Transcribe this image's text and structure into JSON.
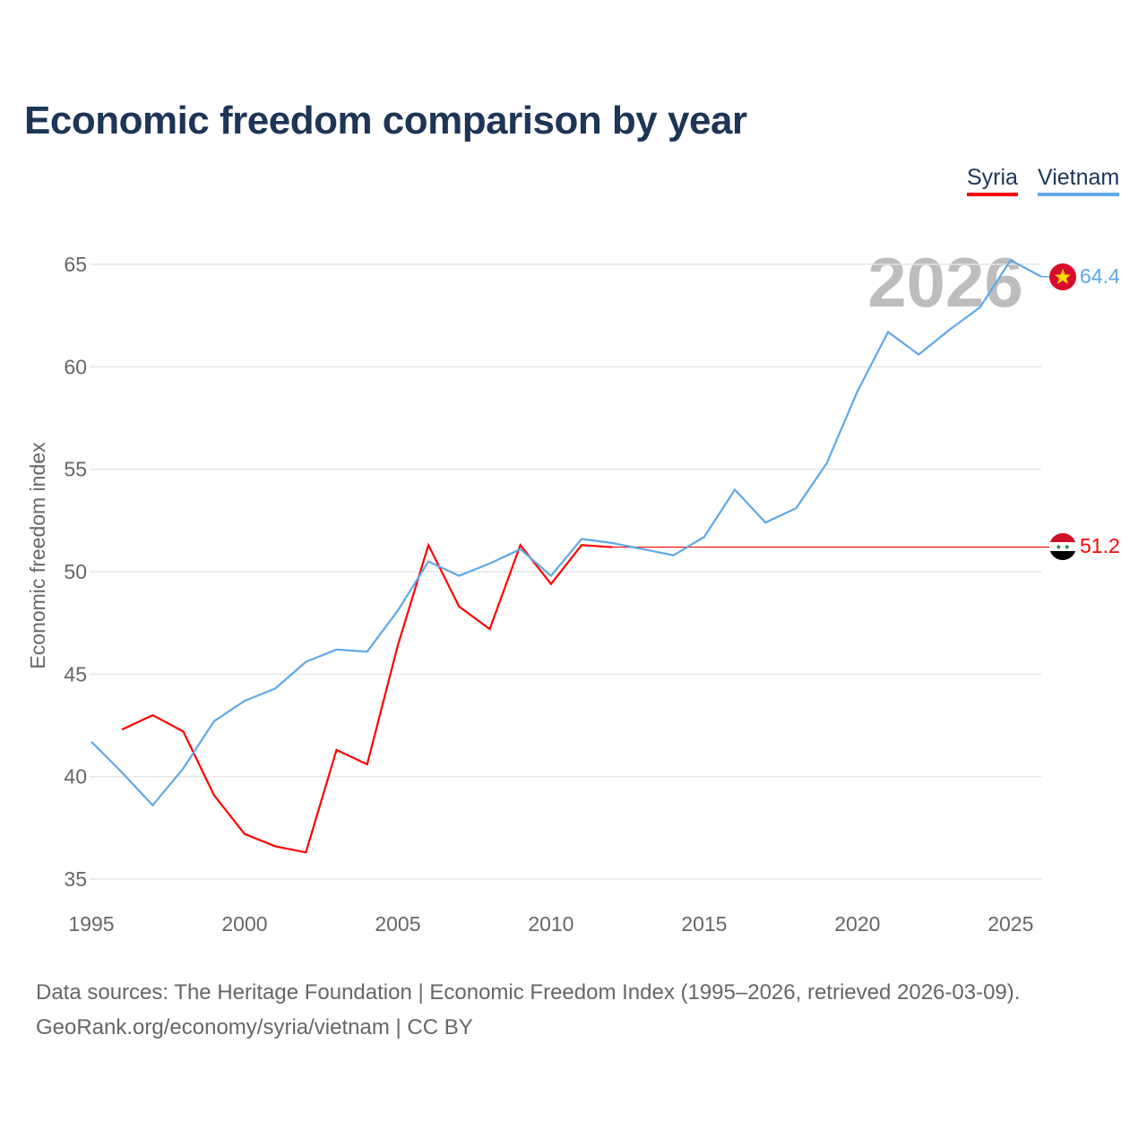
{
  "title": "Economic freedom comparison by year",
  "legend": [
    {
      "label": "Syria",
      "color": "#ff0000"
    },
    {
      "label": "Vietnam",
      "color": "#5fa8e8"
    }
  ],
  "year_watermark": "2026",
  "source_line1": "Data sources: The Heritage Foundation | Economic Freedom Index (1995–2026, retrieved 2026-03-09).",
  "source_line2": "GeoRank.org/economy/syria/vietnam | CC BY",
  "chart_data": {
    "type": "line",
    "title": "Economic freedom comparison by year",
    "xlabel": "",
    "ylabel": "Economic freedom index",
    "xlim": [
      1995,
      2026
    ],
    "ylim": [
      35,
      65
    ],
    "xticks": [
      1995,
      2000,
      2005,
      2010,
      2015,
      2020,
      2025
    ],
    "yticks": [
      35,
      40,
      45,
      50,
      55,
      60,
      65
    ],
    "grid": true,
    "series": [
      {
        "name": "Syria",
        "color": "#ff0000",
        "end_label": "51.2",
        "end_value": 51.2,
        "x": [
          1996,
          1997,
          1998,
          1999,
          2000,
          2001,
          2002,
          2003,
          2004,
          2005,
          2006,
          2007,
          2008,
          2009,
          2010,
          2011,
          2012
        ],
        "y": [
          42.3,
          43.0,
          42.2,
          39.1,
          37.2,
          36.6,
          36.3,
          41.3,
          40.6,
          46.4,
          51.3,
          48.3,
          47.2,
          51.3,
          49.4,
          51.3,
          51.2
        ]
      },
      {
        "name": "Vietnam",
        "color": "#5fa8e8",
        "end_label": "64.4",
        "end_value": 64.4,
        "x": [
          1995,
          1996,
          1997,
          1998,
          1999,
          2000,
          2001,
          2002,
          2003,
          2004,
          2005,
          2006,
          2007,
          2008,
          2009,
          2010,
          2011,
          2012,
          2013,
          2014,
          2015,
          2016,
          2017,
          2018,
          2019,
          2020,
          2021,
          2022,
          2023,
          2024,
          2025,
          2026
        ],
        "y": [
          41.7,
          40.2,
          38.6,
          40.4,
          42.7,
          43.7,
          44.3,
          45.6,
          46.2,
          46.1,
          48.1,
          50.5,
          49.8,
          50.4,
          51.1,
          49.8,
          51.6,
          51.4,
          51.1,
          50.8,
          51.7,
          54.0,
          52.4,
          53.1,
          55.3,
          58.8,
          61.7,
          60.6,
          61.8,
          62.9,
          65.2,
          64.4
        ]
      }
    ]
  }
}
